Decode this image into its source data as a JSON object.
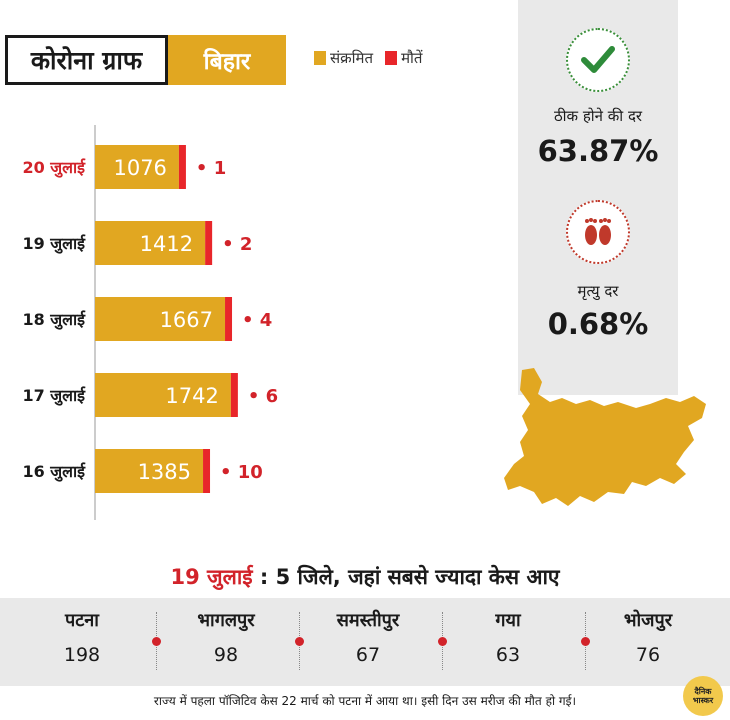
{
  "header": {
    "title": "कोरोना ग्राफ",
    "state": "बिहार",
    "legend": [
      {
        "label": "संक्रमित",
        "color": "#e1a721"
      },
      {
        "label": "मौतें",
        "color": "#e8262a"
      }
    ]
  },
  "chart_data": {
    "type": "bar",
    "orientation": "horizontal",
    "categories": [
      "20 जुलाई",
      "19 जुलाई",
      "18 जुलाई",
      "17 जुलाई",
      "16 जुलाई"
    ],
    "highlight_category": "20 जुलाई",
    "series": [
      {
        "name": "संक्रमित",
        "color": "#e1a721",
        "values": [
          1076,
          1412,
          1667,
          1742,
          1385
        ]
      },
      {
        "name": "मौतें",
        "color": "#e8262a",
        "values": [
          1,
          2,
          4,
          6,
          10
        ]
      }
    ],
    "bar_labels": [
      "1076",
      "1412",
      "1667",
      "1742",
      "1385"
    ],
    "death_labels": [
      "• 1",
      "• 2",
      "• 4",
      "• 6",
      "• 10"
    ],
    "grid": false
  },
  "stats": {
    "recovery_label": "ठीक होने की दर",
    "recovery_value": "63.87%",
    "recovery_icon": "checkmark-icon",
    "mortality_label": "मृत्यु दर",
    "mortality_value": "0.68%",
    "mortality_icon": "footprints-icon"
  },
  "districts_section": {
    "date": "19 जुलाई",
    "separator": " : ",
    "heading": "5 जिले, जहां सबसे ज्यादा केस आए",
    "items": [
      {
        "name": "पटना",
        "cases": "198"
      },
      {
        "name": "भागलपुर",
        "cases": "98"
      },
      {
        "name": "समस्तीपुर",
        "cases": "67"
      },
      {
        "name": "गया",
        "cases": "63"
      },
      {
        "name": "भोजपुर",
        "cases": "76"
      }
    ]
  },
  "footnote": "राज्य में पहला पॉजिटिव केस 22 मार्च को पटना में आया था। इसी दिन उस मरीज की मौत हो गई।",
  "logo": {
    "line1": "दैनिक",
    "line2": "भास्कर"
  },
  "colors": {
    "accent": "#e1a721",
    "death": "#e8262a",
    "highlight": "#d2232a",
    "panel": "#e9e9e9"
  }
}
